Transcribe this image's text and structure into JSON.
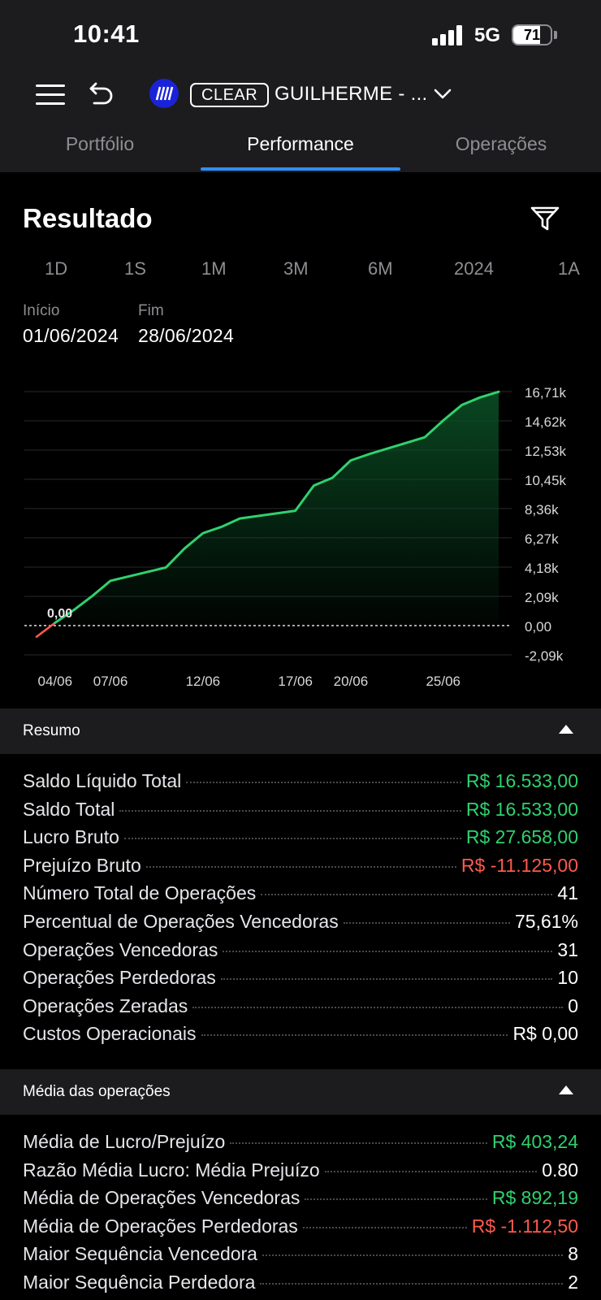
{
  "status_bar": {
    "time": "10:41",
    "network": "5G",
    "battery": "71",
    "battery_level": 0.71
  },
  "header": {
    "broker_badge": "CLEAR",
    "account_name": "GUILHERME - ..."
  },
  "tabs": [
    {
      "label": "Portfólio"
    },
    {
      "label": "Performance"
    },
    {
      "label": "Operações"
    }
  ],
  "section_title": "Resultado",
  "periods": [
    "1D",
    "1S",
    "1M",
    "3M",
    "6M",
    "2024",
    "1A"
  ],
  "dates": {
    "start_label": "Início",
    "start_value": "01/06/2024",
    "end_label": "Fim",
    "end_value": "28/06/2024"
  },
  "chart_data": {
    "type": "area",
    "title": "",
    "xlabel": "",
    "ylabel": "",
    "x_ticks": [
      "04/06",
      "07/06",
      "12/06",
      "17/06",
      "20/06",
      "25/06"
    ],
    "y_ticks": [
      "16,71k",
      "14,62k",
      "12,53k",
      "10,45k",
      "8,36k",
      "6,27k",
      "4,18k",
      "2,09k",
      "0,00",
      "-2,09k"
    ],
    "ylim": [
      -2090,
      16710
    ],
    "zero_label": "0,00",
    "series": [
      {
        "points": [
          [
            "03/06",
            -800
          ],
          [
            "04/06",
            200
          ],
          [
            "05/06",
            1100
          ],
          [
            "06/06",
            2100
          ],
          [
            "07/06",
            3200
          ],
          [
            "10/06",
            4150
          ],
          [
            "11/06",
            5500
          ],
          [
            "12/06",
            6600
          ],
          [
            "13/06",
            7050
          ],
          [
            "14/06",
            7650
          ],
          [
            "17/06",
            8200
          ],
          [
            "18/06",
            10000
          ],
          [
            "19/06",
            10550
          ],
          [
            "20/06",
            11800
          ],
          [
            "21/06",
            12250
          ],
          [
            "24/06",
            13450
          ],
          [
            "25/06",
            14650
          ],
          [
            "26/06",
            15750
          ],
          [
            "27/06",
            16300
          ],
          [
            "28/06",
            16700
          ]
        ]
      }
    ],
    "colors": {
      "line": "#30d16e",
      "negative": "#ff5a4e",
      "fill_top": "#0a4a23"
    }
  },
  "resumo": {
    "title": "Resumo",
    "rows": [
      {
        "name": "Saldo Líquido Total",
        "value": "R$ 16.533,00",
        "tone": "pos"
      },
      {
        "name": "Saldo Total",
        "value": "R$ 16.533,00",
        "tone": "pos"
      },
      {
        "name": "Lucro Bruto",
        "value": "R$ 27.658,00",
        "tone": "pos"
      },
      {
        "name": "Prejuízo Bruto",
        "value": "R$ -11.125,00",
        "tone": "neg"
      },
      {
        "name": "Número Total de Operações",
        "value": "41",
        "tone": ""
      },
      {
        "name": "Percentual de Operações Vencedoras",
        "value": "75,61%",
        "tone": ""
      },
      {
        "name": "Operações Vencedoras",
        "value": "31",
        "tone": ""
      },
      {
        "name": "Operações Perdedoras",
        "value": "10",
        "tone": ""
      },
      {
        "name": "Operações Zeradas",
        "value": "0",
        "tone": ""
      },
      {
        "name": "Custos Operacionais",
        "value": "R$ 0,00",
        "tone": ""
      }
    ]
  },
  "media": {
    "title": "Média das operações",
    "rows": [
      {
        "name": "Média de Lucro/Prejuízo",
        "value": "R$ 403,24",
        "tone": "pos"
      },
      {
        "name": "Razão Média Lucro: Média Prejuízo",
        "value": "0.80",
        "tone": ""
      },
      {
        "name": "Média de Operações Vencedoras",
        "value": "R$ 892,19",
        "tone": "pos"
      },
      {
        "name": "Média de Operações Perdedoras",
        "value": "R$ -1.112,50",
        "tone": "neg"
      },
      {
        "name": "Maior Sequência Vencedora",
        "value": "8",
        "tone": ""
      },
      {
        "name": "Maior Sequência Perdedora",
        "value": "2",
        "tone": ""
      }
    ]
  }
}
